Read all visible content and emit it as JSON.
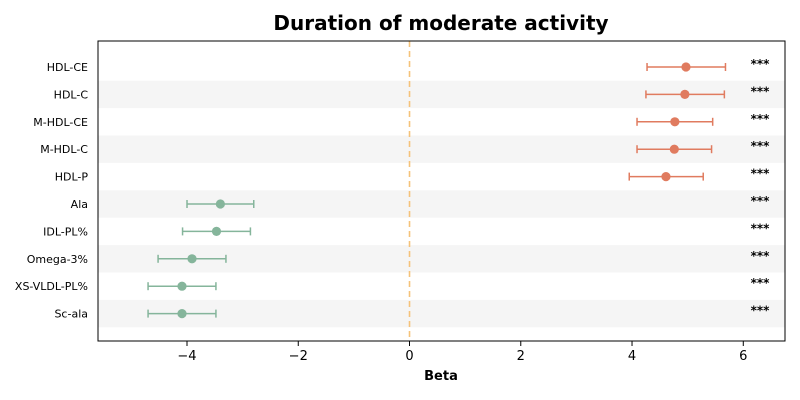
{
  "chart_data": {
    "type": "forest",
    "title": "Duration of moderate activity",
    "xlabel": "Beta",
    "ylabel": "",
    "xlim": [
      -5.6,
      6.75
    ],
    "xticks": [
      -4,
      -2,
      0,
      2,
      4,
      6
    ],
    "xtick_labels": [
      "−4",
      "−2",
      "0",
      "2",
      "4",
      "6"
    ],
    "reference_line": 0,
    "grid": false,
    "colors": {
      "positive": "#e07b5f",
      "negative": "#85b59b",
      "reference": "#f5c27a",
      "band": "#f5f5f5"
    },
    "rows": [
      {
        "label": "HDL-CE",
        "beta": 4.97,
        "ci_low": 4.27,
        "ci_high": 5.68,
        "sig": "***"
      },
      {
        "label": "HDL-C",
        "beta": 4.95,
        "ci_low": 4.25,
        "ci_high": 5.66,
        "sig": "***"
      },
      {
        "label": "M-HDL-CE",
        "beta": 4.77,
        "ci_low": 4.09,
        "ci_high": 5.45,
        "sig": "***"
      },
      {
        "label": "M-HDL-C",
        "beta": 4.76,
        "ci_low": 4.09,
        "ci_high": 5.43,
        "sig": "***"
      },
      {
        "label": "HDL-P",
        "beta": 4.61,
        "ci_low": 3.95,
        "ci_high": 5.28,
        "sig": "***"
      },
      {
        "label": "Ala",
        "beta": -3.4,
        "ci_low": -4.0,
        "ci_high": -2.8,
        "sig": "***"
      },
      {
        "label": "IDL-PL%",
        "beta": -3.47,
        "ci_low": -4.08,
        "ci_high": -2.86,
        "sig": "***"
      },
      {
        "label": "Omega-3%",
        "beta": -3.91,
        "ci_low": -4.52,
        "ci_high": -3.3,
        "sig": "***"
      },
      {
        "label": "XS-VLDL-PL%",
        "beta": -4.09,
        "ci_low": -4.7,
        "ci_high": -3.48,
        "sig": "***"
      },
      {
        "label": "Sc-ala",
        "beta": -4.09,
        "ci_low": -4.7,
        "ci_high": -3.48,
        "sig": "***"
      }
    ]
  }
}
